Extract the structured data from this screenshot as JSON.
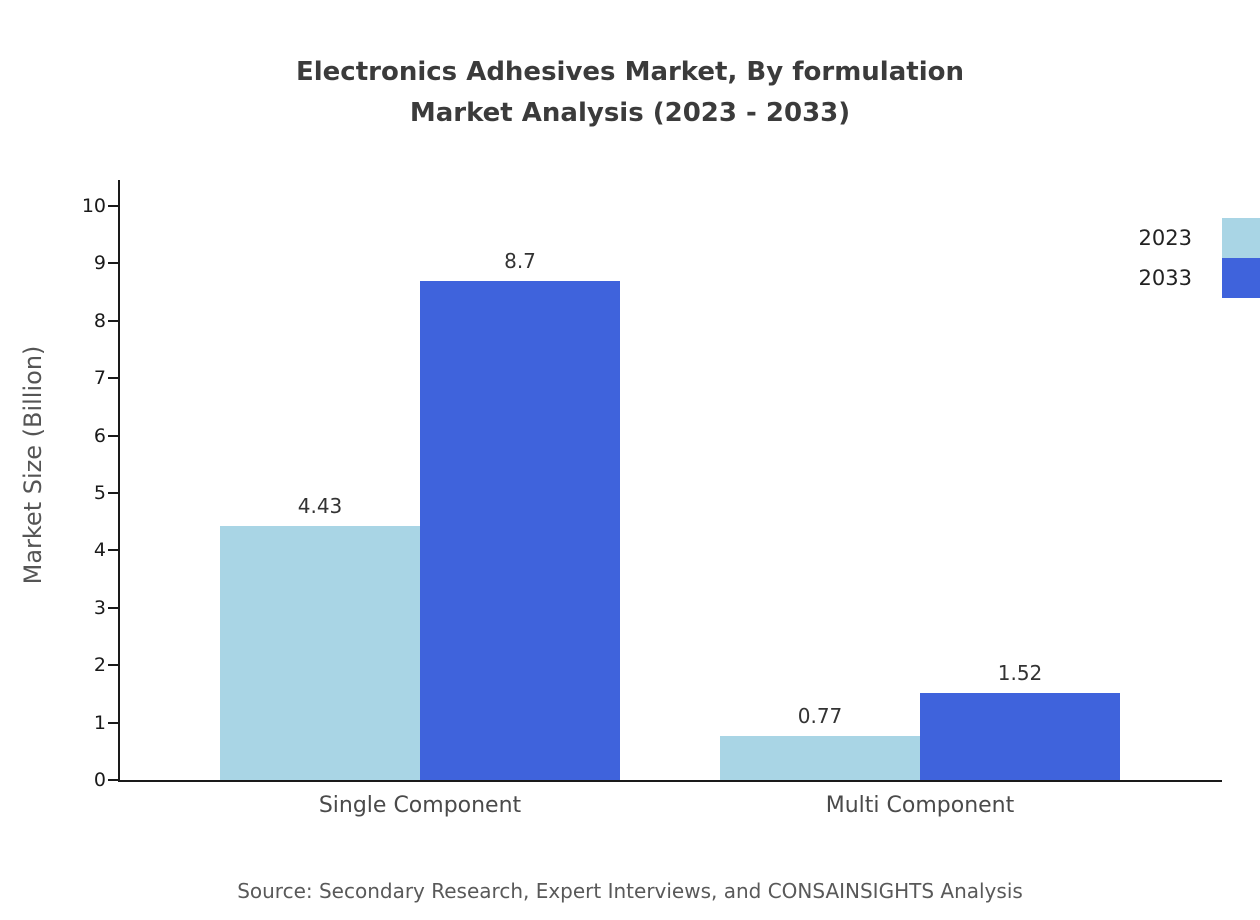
{
  "header": {
    "title_line1": "Electronics Adhesives Market, By formulation",
    "title_line2": "Market Analysis (2023 - 2033)"
  },
  "chart_data": {
    "type": "bar",
    "title": "Electronics Adhesives Market, By formulation Market Analysis (2023 - 2033)",
    "categories": [
      "Single Component",
      "Multi Component"
    ],
    "series": [
      {
        "name": "2023",
        "color": "#A9D5E5",
        "values": [
          4.43,
          0.77
        ]
      },
      {
        "name": "2033",
        "color": "#3F63DC",
        "values": [
          8.7,
          1.52
        ]
      }
    ],
    "bar_value_labels": [
      "4.43",
      "8.7",
      "0.77",
      "1.52"
    ],
    "xlabel": "",
    "ylabel": "Market Size (Billion)",
    "ylim": [
      0,
      10
    ],
    "yticks": [
      0,
      1,
      2,
      3,
      4,
      5,
      6,
      7,
      8,
      9,
      10
    ],
    "legend_position": "top-right",
    "grid": false
  },
  "footer": {
    "source": "Source: Secondary Research, Expert Interviews, and CONSAINSIGHTS Analysis"
  }
}
